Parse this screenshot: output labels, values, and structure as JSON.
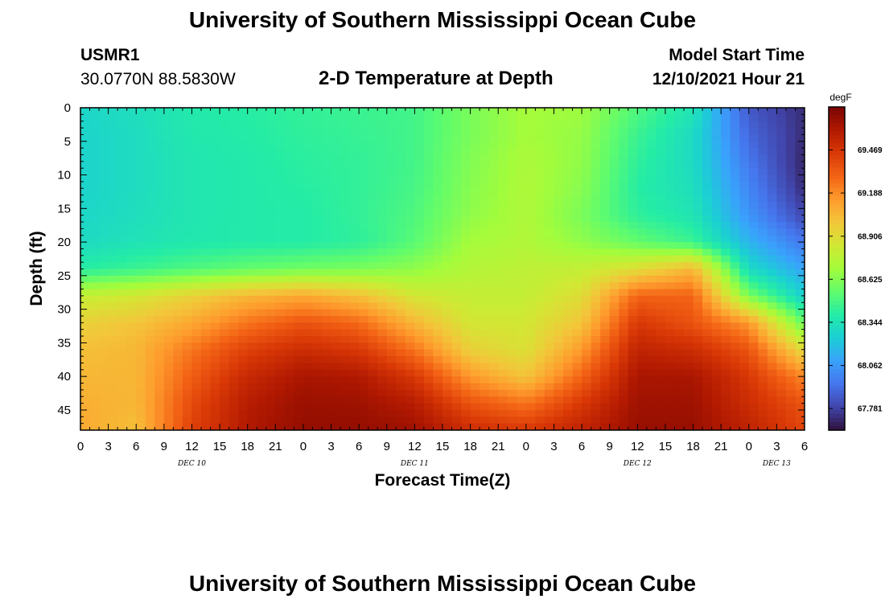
{
  "header": {
    "title": "University of Southern Mississippi Ocean Cube",
    "station": "USMR1",
    "coords": "30.0770N  88.5830W",
    "plot_title": "2-D Temperature at Depth",
    "model_start_label": "Model Start Time",
    "model_start_value": "12/10/2021 Hour 21"
  },
  "footer": {
    "title": "University of Southern Mississippi Ocean Cube"
  },
  "colors": {
    "colormap": [
      "#30123b",
      "#4145ab",
      "#4675ed",
      "#39a2fc",
      "#1bcfd4",
      "#24eca6",
      "#61fc6c",
      "#a4fc3b",
      "#d1e834",
      "#f3c63a",
      "#fe9b2d",
      "#f36315",
      "#d93806",
      "#b11901",
      "#7a0402"
    ]
  },
  "chart_data": {
    "type": "heatmap",
    "xlabel": "Forecast Time(Z)",
    "ylabel": "Depth (ft)",
    "colorbar_label": "degF",
    "x_tick_labels": [
      "0",
      "3",
      "6",
      "9",
      "12",
      "15",
      "18",
      "21",
      "0",
      "3",
      "6",
      "9",
      "12",
      "15",
      "18",
      "21",
      "0",
      "3",
      "6",
      "9",
      "12",
      "15",
      "18",
      "21",
      "0",
      "3",
      "6"
    ],
    "x_range_hours": [
      0,
      78
    ],
    "date_labels": [
      {
        "text": "DEC 10",
        "hour": 12
      },
      {
        "text": "DEC 11",
        "hour": 36
      },
      {
        "text": "DEC 12",
        "hour": 60
      },
      {
        "text": "DEC 13",
        "hour": 75
      }
    ],
    "y_ticks": [
      0,
      5,
      10,
      15,
      20,
      25,
      30,
      35,
      40,
      45
    ],
    "y_range": [
      0,
      48
    ],
    "y_inverted": true,
    "colorbar_range": [
      67.64,
      69.75
    ],
    "colorbar_ticks": [
      "69.469",
      "69.188",
      "68.906",
      "68.625",
      "68.344",
      "68.062",
      "67.781"
    ],
    "colorbar_tick_values": [
      69.469,
      69.188,
      68.906,
      68.625,
      68.344,
      68.062,
      67.781
    ],
    "grid_hours": [
      0,
      6,
      12,
      18,
      24,
      30,
      36,
      42,
      48,
      54,
      60,
      66,
      72,
      78
    ],
    "grid_depths": [
      0,
      4,
      8,
      12,
      16,
      20,
      24,
      28,
      32,
      36,
      40,
      44,
      48
    ],
    "values": [
      [
        68.28,
        68.32,
        68.38,
        68.4,
        68.43,
        68.45,
        68.47,
        68.6,
        68.7,
        68.68,
        68.5,
        68.35,
        67.85,
        67.72
      ],
      [
        68.27,
        68.31,
        68.37,
        68.39,
        68.42,
        68.44,
        68.47,
        68.6,
        68.7,
        68.66,
        68.45,
        68.3,
        67.9,
        67.72
      ],
      [
        68.27,
        68.31,
        68.36,
        68.38,
        68.41,
        68.43,
        68.47,
        68.62,
        68.72,
        68.65,
        68.42,
        68.3,
        67.95,
        67.7
      ],
      [
        68.27,
        68.31,
        68.36,
        68.38,
        68.4,
        68.43,
        68.48,
        68.63,
        68.73,
        68.63,
        68.4,
        68.32,
        68.0,
        67.72
      ],
      [
        68.28,
        68.32,
        68.36,
        68.38,
        68.39,
        68.43,
        68.5,
        68.65,
        68.73,
        68.6,
        68.42,
        68.35,
        68.05,
        67.8
      ],
      [
        68.3,
        68.34,
        68.37,
        68.38,
        68.39,
        68.42,
        68.52,
        68.7,
        68.74,
        68.65,
        68.55,
        68.45,
        68.15,
        67.95
      ],
      [
        68.4,
        68.45,
        68.5,
        68.55,
        68.58,
        68.6,
        68.65,
        68.75,
        68.78,
        68.8,
        68.9,
        69.05,
        68.3,
        68.1
      ],
      [
        68.8,
        68.85,
        68.95,
        69.05,
        69.1,
        69.02,
        68.85,
        68.8,
        68.8,
        68.9,
        69.3,
        69.3,
        68.6,
        68.25
      ],
      [
        68.95,
        69.0,
        69.1,
        69.25,
        69.35,
        69.28,
        69.05,
        68.85,
        68.85,
        69.0,
        69.45,
        69.35,
        69.15,
        68.55
      ],
      [
        69.02,
        69.05,
        69.25,
        69.42,
        69.5,
        69.45,
        69.25,
        68.95,
        68.88,
        69.15,
        69.55,
        69.5,
        69.35,
        68.9
      ],
      [
        69.05,
        69.05,
        69.32,
        69.52,
        69.62,
        69.6,
        69.45,
        69.15,
        69.0,
        69.3,
        69.62,
        69.62,
        69.45,
        69.2
      ],
      [
        69.08,
        69.05,
        69.38,
        69.58,
        69.66,
        69.65,
        69.58,
        69.35,
        69.25,
        69.45,
        69.65,
        69.65,
        69.5,
        69.35
      ],
      [
        69.1,
        69.02,
        69.42,
        69.6,
        69.68,
        69.68,
        69.65,
        69.5,
        69.45,
        69.55,
        69.67,
        69.67,
        69.55,
        69.4
      ]
    ]
  }
}
